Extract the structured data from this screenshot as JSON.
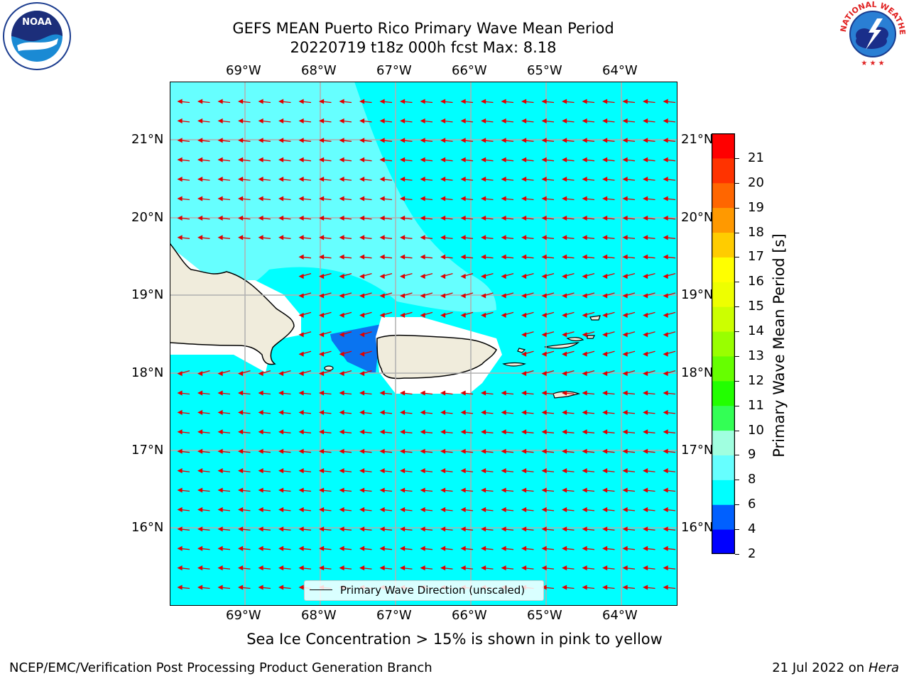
{
  "title": {
    "line1": "GEFS MEAN Puerto Rico Primary Wave Mean Period",
    "line2": "20220719 t18z 000h fcst   Max: 8.18"
  },
  "axes": {
    "lon_labels": [
      "69°W",
      "68°W",
      "67°W",
      "66°W",
      "65°W",
      "64°W"
    ],
    "lat_labels": [
      "21°N",
      "20°N",
      "19°N",
      "18°N",
      "17°N",
      "16°N"
    ]
  },
  "colorbar": {
    "label": "Primary Wave Mean Period [s]",
    "ticks": [
      "2",
      "4",
      "6",
      "8",
      "9",
      "10",
      "11",
      "12",
      "13",
      "14",
      "15",
      "16",
      "17",
      "18",
      "19",
      "20",
      "21"
    ],
    "colors": [
      "#0000ff",
      "#0060ff",
      "#00ffff",
      "#66ffff",
      "#a0ffe0",
      "#33ff55",
      "#22ff00",
      "#66ff00",
      "#99ff00",
      "#ccff00",
      "#eeff00",
      "#ffff00",
      "#ffcc00",
      "#ff9900",
      "#ff6600",
      "#ff3300",
      "#ff0000"
    ]
  },
  "legend": {
    "label": "Primary Wave Direction (unscaled)"
  },
  "note": "Sea Ice Concentration > 15% is shown in pink to yellow",
  "footer": {
    "left": "NCEP/EMC/Verification Post Processing Product Generation Branch",
    "right_date": "21 Jul 2022 on ",
    "right_host": "Hera"
  },
  "logos": {
    "noaa": "NOAA",
    "nws": "NATIONAL WEATHER SERVICE"
  },
  "colors": {
    "ocean": "#00ffff",
    "ocean_light": "#66ffff",
    "ocean_blue": "#0a74f0",
    "land": "#f0ecdc",
    "arrow": "#e00000",
    "grid": "#b0b0b0"
  },
  "map_data": {
    "lon_range": [
      -70,
      -63.25
    ],
    "lat_range": [
      15,
      21.7
    ],
    "max_period": 8.18,
    "arrow_direction": "westward"
  }
}
